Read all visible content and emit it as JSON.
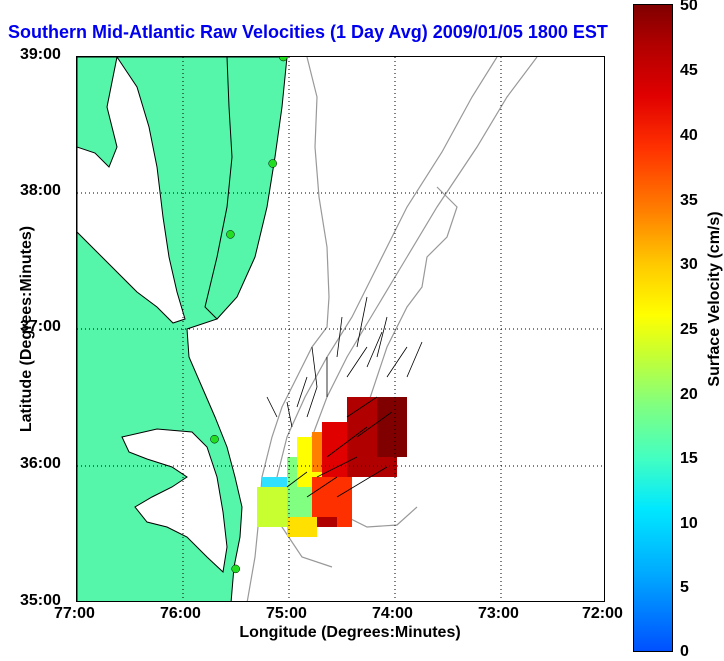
{
  "title": "Southern Mid-Atlantic Raw Velocities (1 Day Avg) 2009/01/05 1800 EST",
  "map": {
    "x_axis_label": "Longitude (Degrees:Minutes)",
    "y_axis_label": "Latitude (Degrees:Minutes)",
    "x_ticks": [
      "77:00",
      "76:00",
      "75:00",
      "74:00",
      "73:00",
      "72:00"
    ],
    "y_ticks": [
      "39:00",
      "38:00",
      "37:00",
      "36:00",
      "35:00"
    ],
    "lon_range": [
      -77,
      -72
    ],
    "lat_range": [
      35,
      39
    ],
    "land_color": "#55f5aa",
    "coastline_color": "#000000",
    "bathymetry_color": "#999999",
    "station_color": "#22dd22",
    "grid": "dotted"
  },
  "colorbar": {
    "label": "Surface Velocity (cm/s)",
    "ticks": [
      "50",
      "45",
      "40",
      "35",
      "30",
      "25",
      "20",
      "15",
      "10",
      "5",
      "0"
    ],
    "range": [
      0,
      50
    ]
  },
  "stations": [
    {
      "lon": -75.05,
      "lat": 39.0
    },
    {
      "lon": -75.15,
      "lat": 38.22
    },
    {
      "lon": -75.55,
      "lat": 37.7
    },
    {
      "lon": -75.7,
      "lat": 36.2
    },
    {
      "lon": -75.5,
      "lat": 35.25
    }
  ]
}
